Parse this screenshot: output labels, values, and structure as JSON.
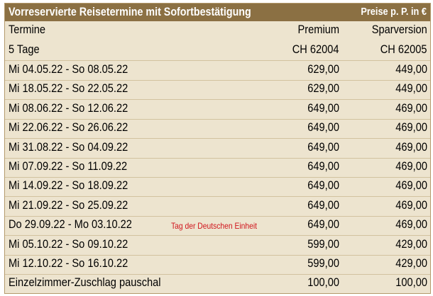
{
  "header": {
    "title": "Vorreservierte Reisetermine mit Sofortbestätigung",
    "price_note": "Preise p. P. in €"
  },
  "columns": {
    "termin": "Termine",
    "premium": "Premium",
    "spar": "Sparversion"
  },
  "subheader": {
    "duration": "5 Tage",
    "premium_code": "CH 62004",
    "spar_code": "CH 62005"
  },
  "rows": [
    {
      "term": "Mi  04.05.22 - So  08.05.22",
      "note": "",
      "premium": "629,00",
      "spar": "449,00"
    },
    {
      "term": "Mi  18.05.22 - So  22.05.22",
      "note": "",
      "premium": "629,00",
      "spar": "449,00"
    },
    {
      "term": "Mi  08.06.22 - So  12.06.22",
      "note": "",
      "premium": "649,00",
      "spar": "469,00"
    },
    {
      "term": "Mi  22.06.22 - So  26.06.22",
      "note": "",
      "premium": "649,00",
      "spar": "469,00"
    },
    {
      "term": "Mi  31.08.22 - So  04.09.22",
      "note": "",
      "premium": "649,00",
      "spar": "469,00"
    },
    {
      "term": "Mi  07.09.22 - So  11.09.22",
      "note": "",
      "premium": "649,00",
      "spar": "469,00"
    },
    {
      "term": "Mi  14.09.22 - So  18.09.22",
      "note": "",
      "premium": "649,00",
      "spar": "469,00"
    },
    {
      "term": "Mi  21.09.22 - So  25.09.22",
      "note": "",
      "premium": "649,00",
      "spar": "469,00"
    },
    {
      "term": "Do  29.09.22 - Mo 03.10.22",
      "note": "Tag der Deutschen Einheit",
      "premium": "649,00",
      "spar": "469,00"
    },
    {
      "term": "Mi  05.10.22 - So  09.10.22",
      "note": "",
      "premium": "599,00",
      "spar": "429,00"
    },
    {
      "term": "Mi  12.10.22 - So  16.10.22",
      "note": "",
      "premium": "599,00",
      "spar": "429,00"
    }
  ],
  "supplement": {
    "label": "Einzelzimmer-Zuschlag pauschal",
    "premium": "100,00",
    "spar": "100,00"
  },
  "colors": {
    "header_bg": "#8b7043",
    "table_bg": "#ede4cf",
    "row_line": "#d2c29f",
    "note_red": "#d0141c"
  }
}
